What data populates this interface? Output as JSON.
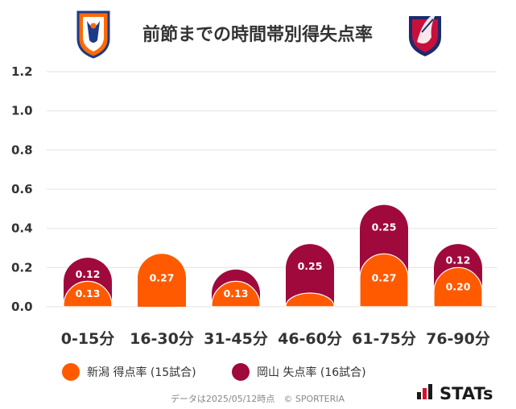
{
  "colors": {
    "niigata": "#ff5a00",
    "okayama": "#a0093c",
    "grid": "#e6e6e6",
    "text": "#333333"
  },
  "chart_data": {
    "type": "bar",
    "title": "前節までの時間帯別得失点率",
    "categories": [
      "0-15分",
      "16-30分",
      "31-45分",
      "46-60分",
      "61-75分",
      "76-90分"
    ],
    "series": [
      {
        "name": "新潟 得点率 (15試合)",
        "values": [
          0.13,
          0.27,
          0.13,
          0.07,
          0.27,
          0.2
        ],
        "labels": [
          "0.13",
          "0.27",
          "0.13",
          "",
          "0.27",
          "0.20"
        ]
      },
      {
        "name": "岡山 失点率 (16試合)",
        "values": [
          0.12,
          0.0,
          0.06,
          0.25,
          0.25,
          0.12
        ],
        "labels": [
          "0.12",
          "",
          "",
          "0.25",
          "0.25",
          "0.12"
        ]
      }
    ],
    "ylim": [
      0,
      1.2
    ],
    "yticks": [
      "0.0",
      "0.2",
      "0.4",
      "0.6",
      "0.8",
      "1.0",
      "1.2"
    ],
    "grid": true,
    "legend": "bottom-left"
  },
  "footer": "データは2025/05/12時点　© SPORTERIA",
  "brand": "STATs",
  "logos": [
    "albirex-niigata-crest",
    "fagiano-okayama-crest"
  ]
}
